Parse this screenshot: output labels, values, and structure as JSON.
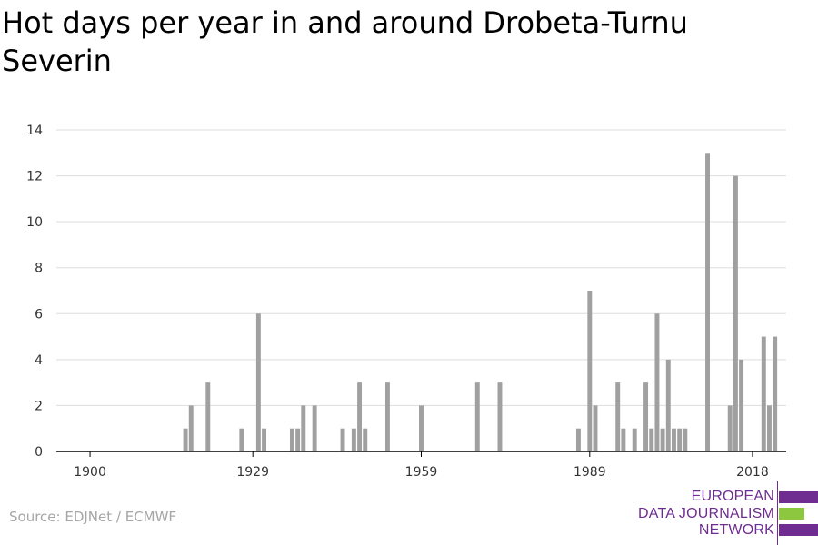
{
  "title": "Hot days per year in and around Drobeta-Turnu Severin",
  "source": "Source: EDJNet / ECMWF",
  "logo": {
    "lines": [
      "EUROPEAN",
      "DATA JOURNALISM",
      "NETWORK"
    ],
    "colors": {
      "purple": "#6f2c91",
      "green": "#8dc63f"
    }
  },
  "colors": {
    "bar": "#a0a0a0",
    "grid": "#dddddd",
    "axis": "#000000",
    "text": "#333333"
  },
  "chart_data": {
    "type": "bar",
    "title": "Hot days per year in and around Drobeta-Turnu Severin",
    "xlabel": "",
    "ylabel": "",
    "ylim": [
      0,
      14
    ],
    "xlim": [
      1894,
      2024
    ],
    "yticks": [
      0,
      2,
      4,
      6,
      8,
      10,
      12,
      14
    ],
    "xticks": [
      1900,
      1929,
      1959,
      1989,
      2018
    ],
    "grid": true,
    "x": [
      1917,
      1918,
      1921,
      1927,
      1930,
      1931,
      1936,
      1937,
      1938,
      1940,
      1945,
      1947,
      1948,
      1949,
      1953,
      1959,
      1969,
      1973,
      1987,
      1989,
      1990,
      1994,
      1995,
      1997,
      1999,
      2000,
      2001,
      2002,
      2003,
      2004,
      2005,
      2006,
      2010,
      2014,
      2015,
      2016,
      2020,
      2021,
      2022
    ],
    "values": [
      1,
      2,
      3,
      1,
      6,
      1,
      1,
      1,
      2,
      2,
      1,
      1,
      3,
      1,
      3,
      2,
      3,
      3,
      1,
      7,
      2,
      3,
      1,
      1,
      3,
      1,
      6,
      1,
      4,
      1,
      1,
      1,
      13,
      2,
      12,
      4,
      5,
      2,
      5
    ]
  }
}
